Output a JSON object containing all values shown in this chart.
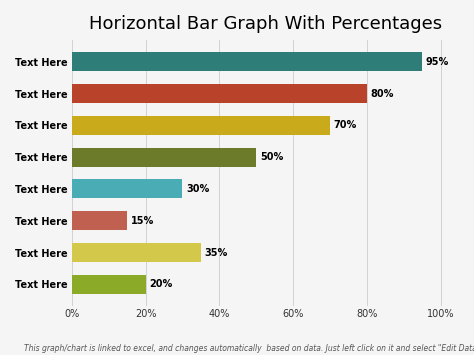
{
  "title": "Horizontal Bar Graph With Percentages",
  "footnote": "This graph/chart is linked to excel, and changes automatically  based on data. Just left click on it and select \"Edit Data.\"",
  "categories": [
    "Text Here",
    "Text Here",
    "Text Here",
    "Text Here",
    "Text Here",
    "Text Here",
    "Text Here",
    "Text Here"
  ],
  "values": [
    95,
    80,
    70,
    50,
    30,
    15,
    35,
    20
  ],
  "colors": [
    "#2e7d78",
    "#b8432a",
    "#c8aa1a",
    "#6b7b2a",
    "#4aacb5",
    "#c06050",
    "#d4c84a",
    "#8aaa28"
  ],
  "bar_labels": [
    "95%",
    "80%",
    "70%",
    "50%",
    "30%",
    "15%",
    "35%",
    "20%"
  ],
  "xlim": [
    0,
    105
  ],
  "xticks": [
    0,
    20,
    40,
    60,
    80,
    100
  ],
  "xticklabels": [
    "0%",
    "20%",
    "40%",
    "60%",
    "80%",
    "100%"
  ],
  "background_color": "#f5f5f5",
  "title_fontsize": 13,
  "label_fontsize": 7,
  "tick_fontsize": 7,
  "footnote_fontsize": 5.5,
  "bar_height": 0.6
}
